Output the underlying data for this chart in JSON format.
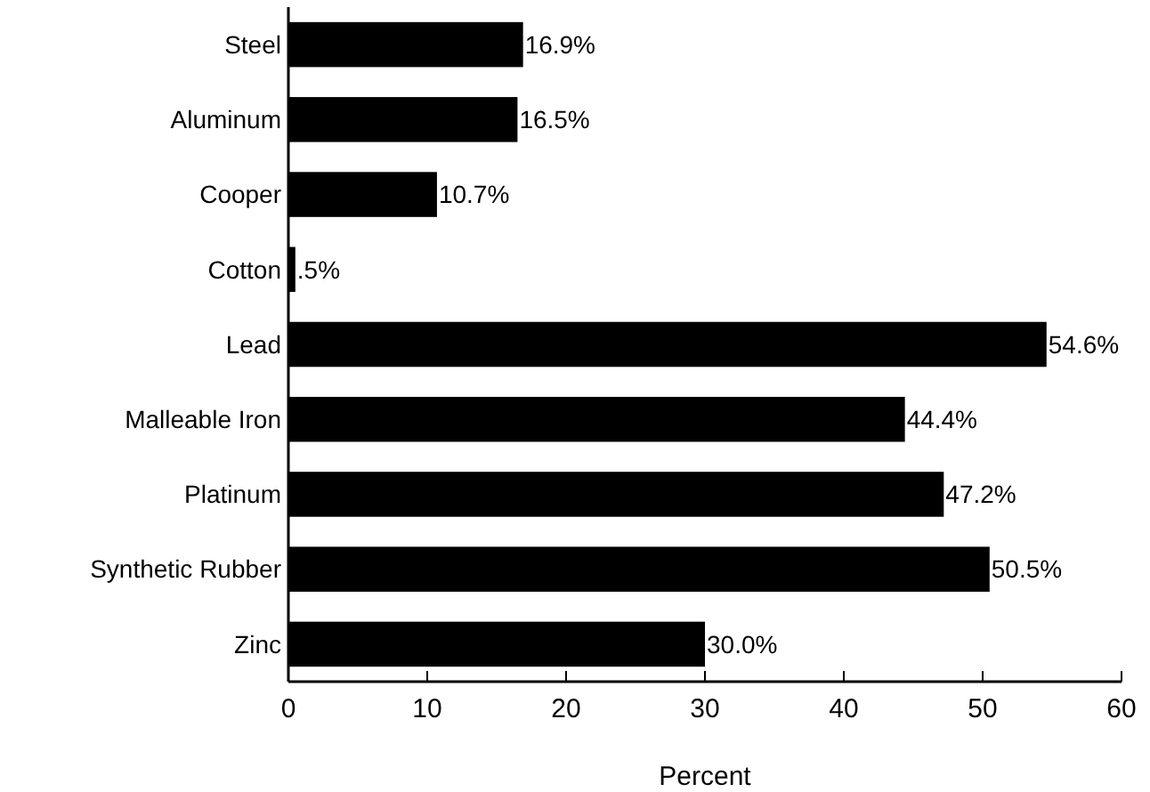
{
  "chart_data": {
    "type": "bar",
    "orientation": "horizontal",
    "xlabel": "Percent",
    "categories": [
      "Steel",
      "Aluminum",
      "Cooper",
      "Cotton",
      "Lead",
      "Malleable Iron",
      "Platinum",
      "Synthetic Rubber",
      "Zinc"
    ],
    "values": [
      16.9,
      16.5,
      10.7,
      0.5,
      54.6,
      44.4,
      47.2,
      50.5,
      30.0
    ],
    "value_labels": [
      "16.9%",
      "16.5%",
      "10.7%",
      ".5%",
      "54.6%",
      "44.4%",
      "47.2%",
      "50.5%",
      "30.0%"
    ],
    "color": "#000000",
    "xlim": [
      0,
      60
    ],
    "xticks": [
      0,
      10,
      20,
      30,
      40,
      50,
      60
    ],
    "grid": false
  }
}
